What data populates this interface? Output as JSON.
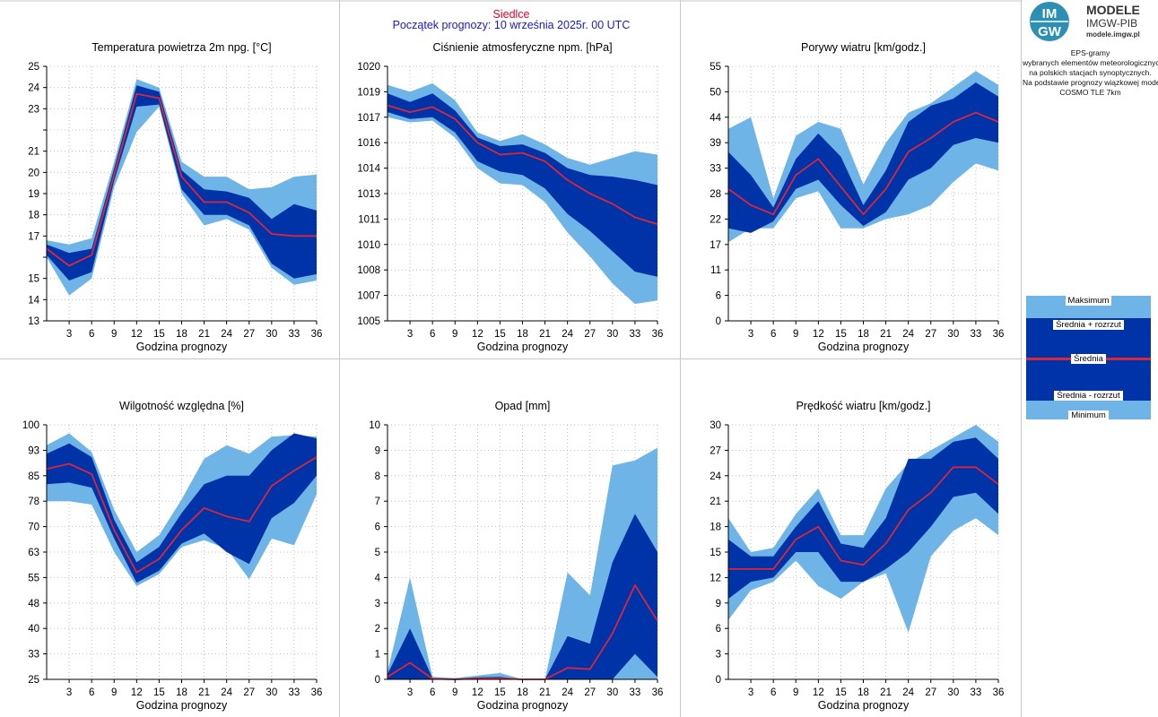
{
  "header": {
    "station": "Siedlce",
    "forecast_start": "Początek prognozy: 10 września 2025r. 00 UTC"
  },
  "logo": {
    "badge_top": "IM",
    "badge_bottom": "GW",
    "line1": "MODELE",
    "line2": "IMGW-PIB",
    "line3": "modele.imgw.pl"
  },
  "info": {
    "lines": [
      "EPS-gramy",
      "wybranych elementów meteorologicznych",
      "na polskich stacjach  synoptycznych.",
      "",
      "Na podstawie prognozy wiązkowej modelu",
      "COSMO TLE 7km"
    ]
  },
  "legend": {
    "max": "Maksimum",
    "mean_plus": "Średnia + rozrzut",
    "mean": "Średnia",
    "mean_minus": "Średnia - rozrzut",
    "min": "Minimum"
  },
  "colors": {
    "envelope": "#6eb4e6",
    "spread": "#0033a8",
    "mean": "#d9263b",
    "grid": "#b0b0b0",
    "station": "#e8002a",
    "forecast_start": "#1a1ac8",
    "logo_badge": "#2e8fb5"
  },
  "chart_data": [
    {
      "type": "area",
      "title": "Temperatura powietrza 2m npg. [°C]",
      "xlabel": "Godzina prognozy",
      "ylabel": "",
      "x": [
        0,
        3,
        6,
        9,
        12,
        15,
        18,
        21,
        24,
        27,
        30,
        33,
        36
      ],
      "xticks": [
        3,
        6,
        9,
        12,
        15,
        18,
        21,
        24,
        27,
        30,
        33,
        36
      ],
      "ylim": [
        13,
        25
      ],
      "yticks": [
        13,
        14,
        15,
        16,
        17,
        18,
        19,
        20,
        21,
        22,
        23,
        24,
        25
      ],
      "ytick_labels": [
        "13",
        "14",
        "15",
        "",
        "17",
        "18",
        "19",
        "20",
        "21",
        "",
        "23",
        "24",
        "25"
      ],
      "grid": true,
      "min": [
        16.0,
        14.2,
        15.0,
        19.3,
        21.9,
        23.1,
        19.0,
        17.5,
        17.8,
        17.3,
        15.5,
        14.7,
        14.9
      ],
      "mean_minus": [
        16.1,
        14.9,
        15.3,
        19.6,
        23.1,
        23.2,
        19.2,
        18.0,
        18.0,
        17.5,
        15.7,
        15.0,
        15.2
      ],
      "mean": [
        16.4,
        15.6,
        16.1,
        19.9,
        23.7,
        23.5,
        19.8,
        18.6,
        18.6,
        18.1,
        17.1,
        17.0,
        17.0
      ],
      "mean_plus": [
        16.6,
        16.2,
        16.4,
        20.2,
        24.1,
        23.8,
        20.1,
        19.2,
        19.1,
        18.8,
        17.8,
        18.5,
        18.2
      ],
      "max": [
        16.8,
        16.6,
        16.9,
        20.5,
        24.4,
        24.0,
        20.5,
        19.8,
        19.8,
        19.2,
        19.3,
        19.8,
        19.9
      ]
    },
    {
      "type": "area",
      "title": "Ciśnienie atmosferyczne npm. [hPa]",
      "xlabel": "Godzina prognozy",
      "ylabel": "",
      "x": [
        0,
        3,
        6,
        9,
        12,
        15,
        18,
        21,
        24,
        27,
        30,
        33,
        36
      ],
      "xticks": [
        3,
        6,
        9,
        12,
        15,
        18,
        21,
        24,
        27,
        30,
        33,
        36
      ],
      "ylim": [
        1005,
        1020
      ],
      "yticks": [
        1005,
        1006.5,
        1008,
        1009.5,
        1011,
        1012.5,
        1014,
        1015.5,
        1017,
        1018.5,
        1020
      ],
      "ytick_labels": [
        "1005",
        "1007",
        "1008",
        "1010",
        "1011",
        "1013",
        "1014",
        "1016",
        "1017",
        "1019",
        "1020"
      ],
      "grid": true,
      "min": [
        1017.0,
        1016.7,
        1016.8,
        1015.8,
        1014.0,
        1013.1,
        1013.0,
        1012.0,
        1010.2,
        1008.8,
        1007.2,
        1006.0,
        1006.2
      ],
      "mean_minus": [
        1017.3,
        1016.9,
        1017.0,
        1016.1,
        1014.4,
        1013.8,
        1013.6,
        1012.8,
        1011.3,
        1010.3,
        1009.1,
        1007.9,
        1007.6
      ],
      "mean": [
        1017.7,
        1017.3,
        1017.6,
        1016.9,
        1015.5,
        1014.8,
        1014.9,
        1014.4,
        1013.3,
        1012.5,
        1011.9,
        1011.1,
        1010.7
      ],
      "mean_plus": [
        1018.4,
        1017.9,
        1018.4,
        1017.4,
        1015.8,
        1015.3,
        1015.4,
        1014.9,
        1014.0,
        1013.6,
        1013.5,
        1013.3,
        1013.0
      ],
      "max": [
        1018.9,
        1018.5,
        1019.0,
        1018.0,
        1016.1,
        1015.6,
        1016.0,
        1015.4,
        1014.6,
        1014.2,
        1014.6,
        1015.0,
        1014.8
      ]
    },
    {
      "type": "area",
      "title": "Porywy wiatru [km/godz.]",
      "xlabel": "Godzina prognozy",
      "ylabel": "",
      "x": [
        0,
        3,
        6,
        9,
        12,
        15,
        18,
        21,
        24,
        27,
        30,
        33,
        36
      ],
      "xticks": [
        3,
        6,
        9,
        12,
        15,
        18,
        21,
        24,
        27,
        30,
        33,
        36
      ],
      "ylim": [
        0,
        55
      ],
      "yticks": [
        0,
        5.5,
        11,
        16.5,
        22,
        27.5,
        33,
        38.5,
        44,
        49.5,
        55
      ],
      "ytick_labels": [
        "0",
        "6",
        "11",
        "17",
        "22",
        "28",
        "33",
        "39",
        "44",
        "50",
        "55"
      ],
      "grid": true,
      "min": [
        17.0,
        20.0,
        20.0,
        26.5,
        28.0,
        20.0,
        20.0,
        22.0,
        23.0,
        25.0,
        30.0,
        34.0,
        32.5
      ],
      "mean_minus": [
        20.0,
        19.0,
        21.5,
        28.5,
        30.5,
        25.0,
        20.5,
        23.5,
        30.5,
        33.0,
        38.0,
        39.5,
        38.5
      ],
      "mean": [
        28.5,
        25.0,
        23.0,
        31.5,
        35.0,
        29.0,
        23.0,
        28.5,
        36.5,
        39.5,
        43.0,
        45.0,
        43.0
      ],
      "mean_plus": [
        36.5,
        31.5,
        24.5,
        35.0,
        40.5,
        35.5,
        25.0,
        32.5,
        43.0,
        46.5,
        48.0,
        51.5,
        48.5
      ],
      "max": [
        41.5,
        44.0,
        26.5,
        40.0,
        43.0,
        41.5,
        29.5,
        38.5,
        45.0,
        47.0,
        50.5,
        54.0,
        51.0
      ]
    },
    {
      "type": "area",
      "title": "Wilgotność względna [%]",
      "xlabel": "Godzina prognozy",
      "ylabel": "",
      "x": [
        0,
        3,
        6,
        9,
        12,
        15,
        18,
        21,
        24,
        27,
        30,
        33,
        36
      ],
      "xticks": [
        3,
        6,
        9,
        12,
        15,
        18,
        21,
        24,
        27,
        30,
        33,
        36
      ],
      "ylim": [
        25,
        100
      ],
      "yticks": [
        25,
        32.5,
        40,
        47.5,
        55,
        62.5,
        70,
        77.5,
        85,
        92.5,
        100
      ],
      "ytick_labels": [
        "25",
        "33",
        "40",
        "48",
        "55",
        "63",
        "70",
        "78",
        "85",
        "93",
        "100"
      ],
      "grid": true,
      "min": [
        77.5,
        77.5,
        76.5,
        62.5,
        52.5,
        56.0,
        64.0,
        66.0,
        63.5,
        54.5,
        66.5,
        64.5,
        79.5
      ],
      "mean_minus": [
        82.5,
        83.0,
        81.5,
        66.5,
        53.5,
        57.0,
        65.0,
        68.0,
        62.5,
        59.0,
        72.5,
        77.0,
        85.0
      ],
      "mean": [
        87.0,
        88.5,
        85.5,
        69.0,
        56.5,
        60.5,
        69.0,
        75.5,
        73.0,
        71.5,
        82.0,
        86.5,
        90.5
      ],
      "mean_plus": [
        91.5,
        94.5,
        90.5,
        72.0,
        59.5,
        64.0,
        74.0,
        82.5,
        85.0,
        85.0,
        92.5,
        97.5,
        96.0
      ],
      "max": [
        94.0,
        97.5,
        92.0,
        75.0,
        62.5,
        67.5,
        78.0,
        90.0,
        94.0,
        91.5,
        96.5,
        97.0,
        96.5
      ]
    },
    {
      "type": "area",
      "title": "Opad [mm]",
      "xlabel": "Godzina prognozy",
      "ylabel": "",
      "x": [
        0,
        3,
        6,
        9,
        12,
        15,
        18,
        21,
        24,
        27,
        30,
        33,
        36
      ],
      "xticks": [
        3,
        6,
        9,
        12,
        15,
        18,
        21,
        24,
        27,
        30,
        33,
        36
      ],
      "ylim": [
        0,
        10
      ],
      "yticks": [
        0,
        1,
        2,
        3,
        4,
        5,
        6,
        7,
        8,
        9,
        10
      ],
      "ytick_labels": [
        "0",
        "1",
        "2",
        "3",
        "4",
        "5",
        "6",
        "7",
        "8",
        "9",
        "10"
      ],
      "grid": true,
      "min": [
        0,
        0,
        0,
        0,
        0,
        0,
        0,
        0,
        0,
        0,
        0,
        0,
        0
      ],
      "mean_minus": [
        0,
        0,
        0,
        0,
        0,
        0,
        0,
        0,
        0,
        0,
        0,
        1.0,
        0.1
      ],
      "mean": [
        0.1,
        0.65,
        0.02,
        0,
        0.03,
        0.04,
        0,
        0,
        0.45,
        0.4,
        1.8,
        3.7,
        2.3
      ],
      "mean_plus": [
        0.2,
        2.0,
        0.05,
        0.02,
        0.08,
        0.1,
        0,
        0,
        1.7,
        1.4,
        4.6,
        6.5,
        5.0
      ],
      "max": [
        0.3,
        4.0,
        0.1,
        0.05,
        0.15,
        0.25,
        0,
        0,
        4.2,
        3.3,
        8.4,
        8.6,
        9.1
      ]
    },
    {
      "type": "area",
      "title": "Prędkość wiatru [km/godz.]",
      "xlabel": "Godzina prognozy",
      "ylabel": "",
      "x": [
        0,
        3,
        6,
        9,
        12,
        15,
        18,
        21,
        24,
        27,
        30,
        33,
        36
      ],
      "xticks": [
        3,
        6,
        9,
        12,
        15,
        18,
        21,
        24,
        27,
        30,
        33,
        36
      ],
      "ylim": [
        0,
        30
      ],
      "yticks": [
        0,
        3,
        6,
        9,
        12,
        15,
        18,
        21,
        24,
        27,
        30
      ],
      "ytick_labels": [
        "0",
        "3",
        "6",
        "9",
        "12",
        "15",
        "18",
        "21",
        "24",
        "27",
        "30"
      ],
      "grid": true,
      "min": [
        7.0,
        10.5,
        11.5,
        14.0,
        11.0,
        9.5,
        11.5,
        12.5,
        5.5,
        14.5,
        17.5,
        19.0,
        17.0
      ],
      "mean_minus": [
        9.5,
        11.5,
        12.0,
        15.0,
        15.0,
        11.5,
        11.5,
        13.0,
        15.0,
        18.0,
        21.5,
        22.0,
        19.5
      ],
      "mean": [
        13.0,
        13.0,
        13.0,
        16.5,
        18.0,
        14.0,
        13.5,
        16.0,
        20.0,
        22.0,
        25.0,
        25.0,
        23.0
      ],
      "mean_plus": [
        16.5,
        14.5,
        14.5,
        18.0,
        21.0,
        16.0,
        15.5,
        19.0,
        26.0,
        26.0,
        28.0,
        28.5,
        26.0
      ],
      "max": [
        19.0,
        15.0,
        15.5,
        19.5,
        22.5,
        17.0,
        17.0,
        22.5,
        25.5,
        27.0,
        28.5,
        30.0,
        28.0
      ]
    }
  ]
}
